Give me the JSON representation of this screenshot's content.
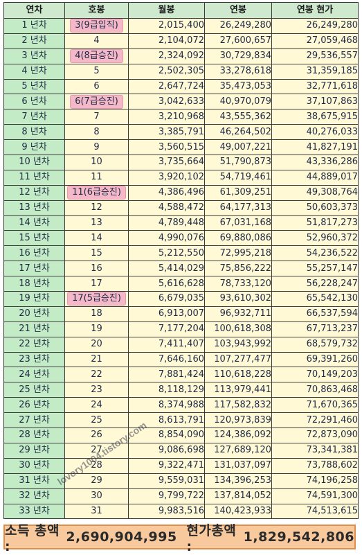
{
  "headers": [
    "연차",
    "호봉",
    "월봉",
    "연봉",
    "연봉 현가"
  ],
  "rows": [
    {
      "year": "1 년차",
      "grade": "3(9급입직)",
      "highlight": true,
      "monthly": "2,015,400",
      "annual": "26,249,280",
      "pv": "26,249,280"
    },
    {
      "year": "2 년차",
      "grade": "4",
      "highlight": false,
      "monthly": "2,104,072",
      "annual": "27,600,657",
      "pv": "27,059,468"
    },
    {
      "year": "3 년차",
      "grade": "4(8급승진)",
      "highlight": true,
      "monthly": "2,324,092",
      "annual": "30,729,834",
      "pv": "29,536,557"
    },
    {
      "year": "4 년차",
      "grade": "5",
      "highlight": false,
      "monthly": "2,502,305",
      "annual": "33,278,618",
      "pv": "31,359,185"
    },
    {
      "year": "5 년차",
      "grade": "6",
      "highlight": false,
      "monthly": "2,647,724",
      "annual": "35,473,053",
      "pv": "32,771,618"
    },
    {
      "year": "6 년차",
      "grade": "6(7급승진)",
      "highlight": true,
      "monthly": "3,042,633",
      "annual": "40,970,079",
      "pv": "37,107,863"
    },
    {
      "year": "7 년차",
      "grade": "7",
      "highlight": false,
      "monthly": "3,210,968",
      "annual": "43,555,362",
      "pv": "38,675,915"
    },
    {
      "year": "8 년차",
      "grade": "8",
      "highlight": false,
      "monthly": "3,385,791",
      "annual": "46,264,502",
      "pv": "40,276,033"
    },
    {
      "year": "9 년차",
      "grade": "9",
      "highlight": false,
      "monthly": "3,560,515",
      "annual": "49,007,221",
      "pv": "41,827,191"
    },
    {
      "year": "10 년차",
      "grade": "10",
      "highlight": false,
      "monthly": "3,735,664",
      "annual": "51,790,873",
      "pv": "43,336,286"
    },
    {
      "year": "11 년차",
      "grade": "11",
      "highlight": false,
      "monthly": "3,920,102",
      "annual": "54,719,461",
      "pv": "44,889,017"
    },
    {
      "year": "12 년차",
      "grade": "11(6급승진)",
      "highlight": true,
      "monthly": "4,386,496",
      "annual": "61,309,251",
      "pv": "49,308,764"
    },
    {
      "year": "13 년차",
      "grade": "12",
      "highlight": false,
      "monthly": "4,588,472",
      "annual": "64,177,313",
      "pv": "50,603,373"
    },
    {
      "year": "14 년차",
      "grade": "13",
      "highlight": false,
      "monthly": "4,789,448",
      "annual": "67,031,168",
      "pv": "51,817,273"
    },
    {
      "year": "15 년차",
      "grade": "14",
      "highlight": false,
      "monthly": "4,990,076",
      "annual": "69,880,086",
      "pv": "52,960,372"
    },
    {
      "year": "16 년차",
      "grade": "15",
      "highlight": false,
      "monthly": "5,212,550",
      "annual": "72,995,218",
      "pv": "54,236,522"
    },
    {
      "year": "17 년차",
      "grade": "16",
      "highlight": false,
      "monthly": "5,414,029",
      "annual": "75,856,222",
      "pv": "55,257,147"
    },
    {
      "year": "18 년차",
      "grade": "17",
      "highlight": false,
      "monthly": "5,616,628",
      "annual": "78,733,120",
      "pv": "56,228,247"
    },
    {
      "year": "19 년차",
      "grade": "17(5급승진)",
      "highlight": true,
      "monthly": "6,679,035",
      "annual": "93,610,302",
      "pv": "65,542,130"
    },
    {
      "year": "20 년차",
      "grade": "18",
      "highlight": false,
      "monthly": "6,913,007",
      "annual": "96,932,711",
      "pv": "66,537,594"
    },
    {
      "year": "21 년차",
      "grade": "19",
      "highlight": false,
      "monthly": "7,177,204",
      "annual": "100,618,308",
      "pv": "67,713,237"
    },
    {
      "year": "22 년차",
      "grade": "20",
      "highlight": false,
      "monthly": "7,411,407",
      "annual": "103,943,992",
      "pv": "68,579,732"
    },
    {
      "year": "23 년차",
      "grade": "21",
      "highlight": false,
      "monthly": "7,646,160",
      "annual": "107,277,477",
      "pv": "69,391,260"
    },
    {
      "year": "24 년차",
      "grade": "22",
      "highlight": false,
      "monthly": "7,881,424",
      "annual": "110,618,228",
      "pv": "70,149,203"
    },
    {
      "year": "25 년차",
      "grade": "23",
      "highlight": false,
      "monthly": "8,118,129",
      "annual": "113,979,441",
      "pv": "70,863,468"
    },
    {
      "year": "26 년차",
      "grade": "24",
      "highlight": false,
      "monthly": "8,374,988",
      "annual": "117,582,832",
      "pv": "71,670,365"
    },
    {
      "year": "27 년차",
      "grade": "25",
      "highlight": false,
      "monthly": "8,613,791",
      "annual": "120,973,839",
      "pv": "72,291,460"
    },
    {
      "year": "28 년차",
      "grade": "26",
      "highlight": false,
      "monthly": "8,854,090",
      "annual": "124,386,092",
      "pv": "72,873,090"
    },
    {
      "year": "29 년차",
      "grade": "27",
      "highlight": false,
      "monthly": "9,086,698",
      "annual": "127,689,120",
      "pv": "73,341,381"
    },
    {
      "year": "30 년차",
      "grade": "28",
      "highlight": false,
      "monthly": "9,322,471",
      "annual": "131,037,097",
      "pv": "73,788,602"
    },
    {
      "year": "31 년차",
      "grade": "29",
      "highlight": false,
      "monthly": "9,559,031",
      "annual": "134,396,253",
      "pv": "74,196,258"
    },
    {
      "year": "32 년차",
      "grade": "30",
      "highlight": false,
      "monthly": "9,799,722",
      "annual": "137,814,052",
      "pv": "74,591,300"
    },
    {
      "year": "33 년차",
      "grade": "31",
      "highlight": false,
      "monthly": "9,983,516",
      "annual": "140,423,933",
      "pv": "74,513,615"
    }
  ],
  "summary": {
    "income_label": "소득 총액 :",
    "income_value": "2,690,904,995",
    "pv_label": "현가총액 :",
    "pv_value": "1,829,542,806"
  },
  "watermark": "lovory1004.tistory.com",
  "colors": {
    "year_bg": "#c3ebc6",
    "cell_bg": "#fff9d6",
    "header_bg": "#cfe9ce",
    "highlight_bg": "#f5b8c8",
    "summary_bg": "#f8c99d",
    "summary_border": "#e08e4b"
  }
}
